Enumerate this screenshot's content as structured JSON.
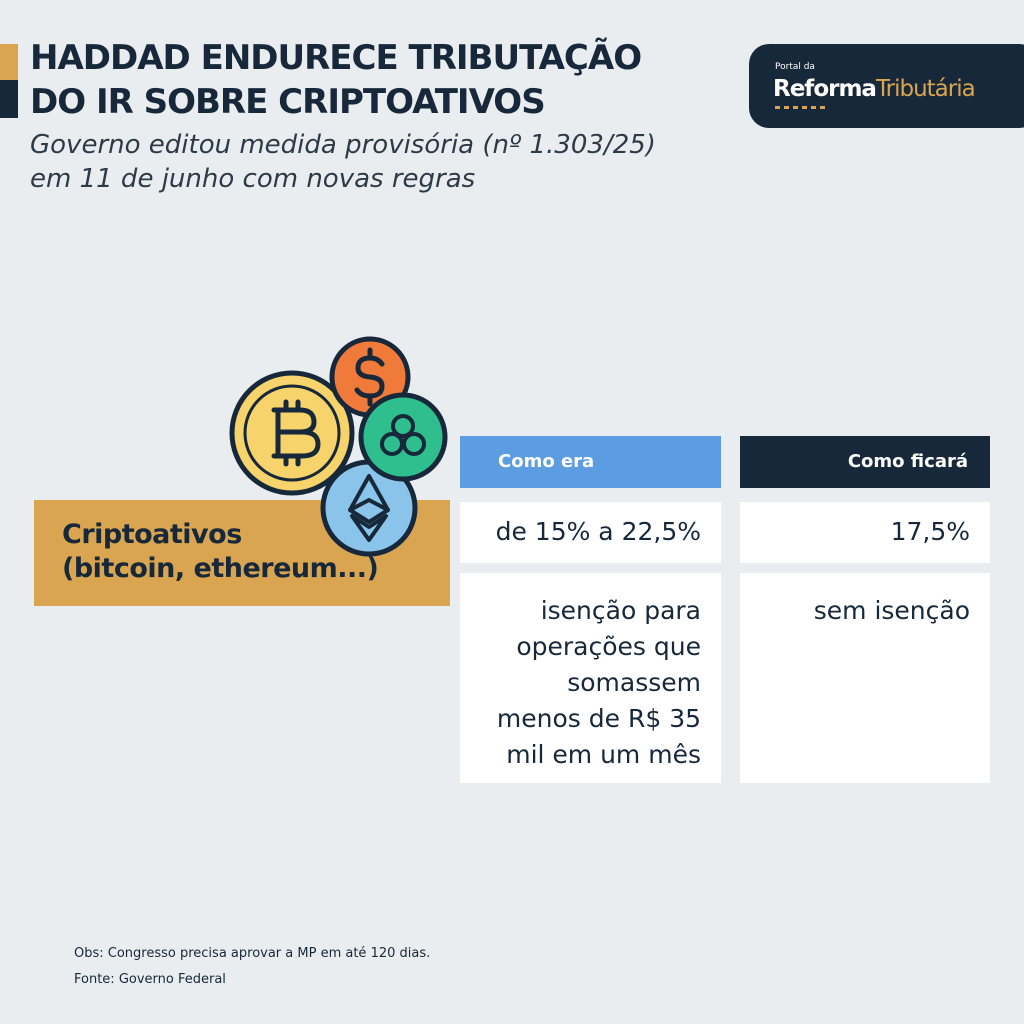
{
  "header": {
    "headline_lines": [
      "HADDAD ENDURECE TRIBUTAÇÃO",
      "DO IR SOBRE CRIPTOATIVOS"
    ],
    "subtitle_lines": [
      "Governo editou medida provisória (nº 1.303/25)",
      "em 11 de junho com novas regras"
    ]
  },
  "logo": {
    "small": "Portal da",
    "word1": "Reforma",
    "word2": "Tributária"
  },
  "topic": {
    "label_lines": [
      "Criptoativos",
      "(bitcoin, ethereum...)"
    ],
    "illustration_icons": [
      "bitcoin-coin-icon",
      "dollar-coin-icon",
      "clover-coin-icon",
      "ethereum-coin-icon"
    ]
  },
  "table": {
    "headers": {
      "before": "Como era",
      "after": "Como ficará"
    },
    "rows": [
      {
        "before_lines": [
          "de 15% a 22,5%"
        ],
        "after_lines": [
          "17,5%"
        ]
      },
      {
        "before_lines": [
          "isenção para",
          "operações que",
          "somassem",
          "menos de R$ 35",
          "mil em um mês"
        ],
        "after_lines": [
          "sem isenção"
        ]
      }
    ]
  },
  "footer": {
    "obs": "Obs: Congresso precisa aprovar a MP em até 120 dias.",
    "source": "Fonte: Governo Federal"
  },
  "colors": {
    "background": "#e9edf0",
    "navy": "#16283a",
    "gold": "#d9a551",
    "blue_header": "#5b9de0",
    "bitcoin": "#f7d36b",
    "dollar": "#f07a3a",
    "clover": "#2fbf8f",
    "ethereum": "#8ac4ea"
  }
}
